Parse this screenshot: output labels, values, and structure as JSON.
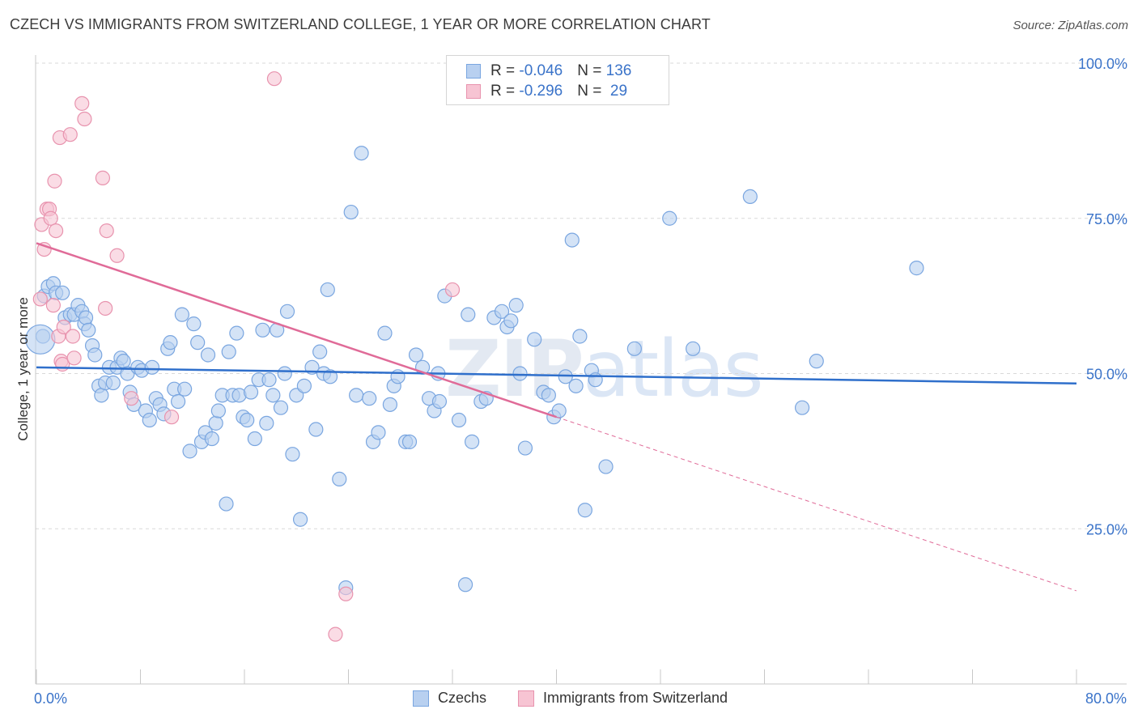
{
  "title": "CZECH VS IMMIGRANTS FROM SWITZERLAND COLLEGE, 1 YEAR OR MORE CORRELATION CHART",
  "source": "Source: ZipAtlas.com",
  "watermark": {
    "bold": "ZIP",
    "light": "atlas"
  },
  "colors": {
    "blue_fill": "#b8d0f0",
    "blue_stroke": "#7aa6e0",
    "blue_line": "#2f6fcb",
    "pink_fill": "#f7c4d3",
    "pink_stroke": "#e893ae",
    "pink_line": "#e06b98",
    "axis_text": "#3a73c9",
    "grid": "#d9d9d9"
  },
  "legend": {
    "rows": [
      {
        "r_label": "R = ",
        "r_value": "-0.046",
        "n_label": "N = ",
        "n_value": "136"
      },
      {
        "r_label": "R = ",
        "r_value": "-0.296",
        "n_label": "N = ",
        "n_value": " 29"
      }
    ]
  },
  "chart_data": {
    "type": "scatter",
    "title": "CZECH VS IMMIGRANTS FROM SWITZERLAND COLLEGE, 1 YEAR OR MORE CORRELATION CHART",
    "xlabel": "",
    "ylabel": "College, 1 year or more",
    "xlim": [
      0,
      80
    ],
    "ylim": [
      0,
      100
    ],
    "x_tick_labels": [
      "0.0%",
      "80.0%"
    ],
    "y_ticks": [
      25,
      50,
      75,
      100
    ],
    "y_tick_labels": [
      "25.0%",
      "50.0%",
      "75.0%",
      "100.0%"
    ],
    "series": [
      {
        "name": "Czechs",
        "r": -0.046,
        "n": 136,
        "trend": {
          "x": [
            0,
            80
          ],
          "y": [
            51.0,
            48.4
          ],
          "style": "solid"
        },
        "points": [
          [
            0.5,
            56.0
          ],
          [
            0.6,
            62.5
          ],
          [
            0.9,
            64.0
          ],
          [
            1.3,
            64.5
          ],
          [
            1.5,
            63.0
          ],
          [
            2.0,
            63.0
          ],
          [
            2.2,
            59.0
          ],
          [
            2.6,
            59.5
          ],
          [
            2.9,
            59.5
          ],
          [
            3.2,
            61.0
          ],
          [
            3.5,
            60.0
          ],
          [
            3.7,
            58.0
          ],
          [
            3.8,
            59.0
          ],
          [
            4.0,
            57.0
          ],
          [
            4.3,
            54.5
          ],
          [
            4.5,
            53.0
          ],
          [
            4.8,
            48.0
          ],
          [
            5.0,
            46.5
          ],
          [
            5.3,
            48.5
          ],
          [
            5.6,
            51.0
          ],
          [
            5.9,
            48.5
          ],
          [
            6.2,
            51.0
          ],
          [
            6.5,
            52.5
          ],
          [
            6.7,
            52.0
          ],
          [
            7.0,
            50.0
          ],
          [
            7.2,
            47.0
          ],
          [
            7.5,
            45.0
          ],
          [
            7.8,
            51.0
          ],
          [
            8.1,
            50.5
          ],
          [
            8.4,
            44.0
          ],
          [
            8.7,
            42.5
          ],
          [
            8.9,
            51.0
          ],
          [
            9.2,
            46.0
          ],
          [
            9.5,
            45.0
          ],
          [
            9.8,
            43.5
          ],
          [
            10.1,
            54.0
          ],
          [
            10.3,
            55.0
          ],
          [
            10.6,
            47.5
          ],
          [
            10.9,
            45.5
          ],
          [
            11.2,
            59.5
          ],
          [
            11.4,
            47.5
          ],
          [
            11.8,
            37.5
          ],
          [
            12.1,
            58.0
          ],
          [
            12.4,
            55.0
          ],
          [
            12.7,
            39.0
          ],
          [
            13.0,
            40.5
          ],
          [
            13.2,
            53.0
          ],
          [
            13.5,
            39.5
          ],
          [
            13.8,
            42.0
          ],
          [
            14.0,
            44.0
          ],
          [
            14.3,
            46.5
          ],
          [
            14.6,
            29.0
          ],
          [
            14.8,
            53.5
          ],
          [
            15.1,
            46.5
          ],
          [
            15.4,
            56.5
          ],
          [
            15.6,
            46.5
          ],
          [
            15.9,
            43.0
          ],
          [
            16.2,
            42.5
          ],
          [
            16.5,
            47.0
          ],
          [
            16.8,
            39.5
          ],
          [
            17.1,
            49.0
          ],
          [
            17.4,
            57.0
          ],
          [
            17.7,
            42.0
          ],
          [
            17.9,
            49.0
          ],
          [
            18.2,
            46.5
          ],
          [
            18.5,
            57.0
          ],
          [
            18.8,
            44.5
          ],
          [
            19.1,
            50.0
          ],
          [
            19.3,
            60.0
          ],
          [
            19.7,
            37.0
          ],
          [
            20.0,
            46.5
          ],
          [
            20.3,
            26.5
          ],
          [
            20.6,
            48.0
          ],
          [
            21.2,
            51.0
          ],
          [
            21.5,
            41.0
          ],
          [
            21.8,
            53.5
          ],
          [
            22.1,
            50.0
          ],
          [
            22.4,
            63.5
          ],
          [
            22.6,
            49.5
          ],
          [
            23.3,
            33.0
          ],
          [
            23.8,
            15.5
          ],
          [
            24.2,
            76.0
          ],
          [
            24.6,
            46.5
          ],
          [
            25.0,
            85.5
          ],
          [
            25.6,
            46.0
          ],
          [
            25.9,
            39.0
          ],
          [
            26.3,
            40.5
          ],
          [
            26.8,
            56.5
          ],
          [
            27.2,
            45.0
          ],
          [
            27.5,
            48.0
          ],
          [
            27.8,
            49.5
          ],
          [
            28.4,
            39.0
          ],
          [
            28.7,
            39.0
          ],
          [
            29.2,
            53.0
          ],
          [
            29.7,
            51.0
          ],
          [
            30.2,
            46.0
          ],
          [
            30.6,
            44.0
          ],
          [
            30.9,
            50.0
          ],
          [
            31.4,
            62.5
          ],
          [
            31.0,
            45.5
          ],
          [
            32.5,
            42.5
          ],
          [
            33.0,
            16.0
          ],
          [
            33.2,
            59.5
          ],
          [
            33.5,
            39.0
          ],
          [
            34.2,
            45.5
          ],
          [
            34.6,
            46.0
          ],
          [
            35.2,
            59.0
          ],
          [
            35.8,
            60.0
          ],
          [
            36.2,
            57.5
          ],
          [
            36.5,
            58.5
          ],
          [
            36.9,
            61.0
          ],
          [
            37.2,
            50.0
          ],
          [
            37.6,
            38.0
          ],
          [
            38.3,
            55.5
          ],
          [
            39.0,
            47.0
          ],
          [
            39.4,
            46.5
          ],
          [
            39.8,
            43.0
          ],
          [
            40.2,
            44.0
          ],
          [
            40.7,
            49.5
          ],
          [
            41.2,
            71.5
          ],
          [
            41.5,
            48.0
          ],
          [
            41.8,
            56.0
          ],
          [
            42.2,
            28.0
          ],
          [
            42.7,
            50.5
          ],
          [
            43.0,
            49.0
          ],
          [
            43.8,
            35.0
          ],
          [
            46.0,
            54.0
          ],
          [
            48.7,
            75.0
          ],
          [
            50.5,
            54.0
          ],
          [
            54.9,
            78.5
          ],
          [
            58.9,
            44.5
          ],
          [
            60.0,
            52.0
          ],
          [
            67.7,
            67.0
          ],
          [
            0.3,
            55.5
          ]
        ]
      },
      {
        "name": "Immigrants from Switzerland",
        "r": -0.296,
        "n": 29,
        "trend": {
          "x": [
            0,
            40
          ],
          "y": [
            71.0,
            43.0
          ],
          "style": "solid",
          "dashed_extension": {
            "x": [
              40,
              80
            ],
            "y": [
              43.0,
              15.0
            ]
          }
        },
        "points": [
          [
            0.3,
            62.0
          ],
          [
            0.4,
            74.0
          ],
          [
            0.6,
            70.0
          ],
          [
            0.8,
            76.5
          ],
          [
            1.0,
            76.5
          ],
          [
            1.1,
            75.0
          ],
          [
            1.3,
            61.0
          ],
          [
            1.5,
            73.0
          ],
          [
            1.4,
            81.0
          ],
          [
            1.7,
            56.0
          ],
          [
            1.9,
            52.0
          ],
          [
            2.0,
            51.5
          ],
          [
            2.1,
            57.5
          ],
          [
            1.8,
            88.0
          ],
          [
            2.6,
            88.5
          ],
          [
            2.8,
            56.0
          ],
          [
            2.9,
            52.5
          ],
          [
            3.5,
            93.5
          ],
          [
            3.7,
            91.0
          ],
          [
            5.1,
            81.5
          ],
          [
            5.4,
            73.0
          ],
          [
            5.3,
            60.5
          ],
          [
            6.2,
            69.0
          ],
          [
            7.3,
            46.0
          ],
          [
            10.4,
            43.0
          ],
          [
            18.3,
            97.5
          ],
          [
            23.8,
            14.5
          ],
          [
            32.0,
            63.5
          ],
          [
            23.0,
            8.0
          ]
        ]
      }
    ]
  },
  "bottom_legend": {
    "czechs": "Czechs",
    "swiss": "Immigrants from Switzerland"
  }
}
